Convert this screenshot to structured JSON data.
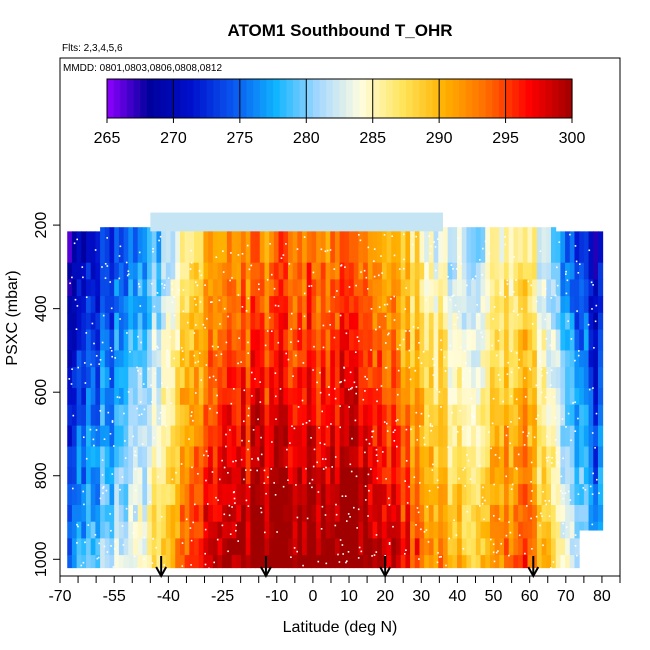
{
  "chart_data": {
    "type": "heatmap",
    "title": "ATOM1 Southbound T_OHR",
    "annotations": {
      "flights": "Flts: 2,3,4,5,6",
      "dates": "MMDD: 0801,0803,0806,0808,0812"
    },
    "xlabel": "Latitude (deg N)",
    "ylabel": "PSXC (mbar)",
    "xlim": [
      -70,
      85
    ],
    "ylim": [
      1040,
      -200
    ],
    "y_reversed": true,
    "x_ticks": [
      -70,
      -55,
      -40,
      -25,
      -10,
      0,
      10,
      20,
      30,
      40,
      50,
      60,
      70,
      80
    ],
    "x_tick_labels": [
      "-70",
      "-55",
      "-40",
      "-25",
      "-10",
      "0",
      "10",
      "20",
      "30",
      "40",
      "50",
      "60",
      "70",
      "80"
    ],
    "x_minor_ticks": [
      -65,
      -60,
      -50,
      -45,
      -35,
      -30,
      -20,
      -15,
      -5,
      5,
      15,
      25,
      35,
      45,
      55,
      65,
      75,
      85
    ],
    "y_ticks": [
      200,
      400,
      600,
      800,
      1000
    ],
    "y_tick_labels": [
      "200",
      "400",
      "600",
      "800",
      "1000"
    ],
    "colorbar": {
      "ticks": [
        265,
        270,
        275,
        280,
        285,
        290,
        295,
        300
      ],
      "tick_labels": [
        "265",
        "270",
        "275",
        "280",
        "285",
        "290",
        "295",
        "300"
      ],
      "range": [
        265,
        300
      ],
      "colors": [
        "#8f00ff",
        "#00009c",
        "#0010cc",
        "#0a58f0",
        "#10b4ff",
        "#a6d8ff",
        "#fffde0",
        "#ffe45a",
        "#ffb000",
        "#ff6a00",
        "#ff0000",
        "#a00000"
      ]
    },
    "grid": false,
    "pressure_levels": [
      200,
      290,
      330,
      370,
      410,
      450,
      500,
      540,
      590,
      630,
      680,
      730,
      780,
      820,
      870,
      910,
      950,
      990,
      1020
    ],
    "lat_knots": [
      -68,
      -62,
      -56,
      -50,
      -44,
      -38,
      -32,
      -26,
      -20,
      -14,
      -8,
      -2,
      4,
      10,
      16,
      22,
      28,
      34,
      40,
      46,
      52,
      58,
      64,
      70,
      78
    ],
    "temp_profile": [
      272,
      274,
      276,
      279,
      283,
      287,
      291,
      294.5,
      295.5,
      296,
      296.5,
      296.5,
      296.5,
      296,
      295,
      293,
      290,
      287,
      285,
      286,
      289,
      290,
      285,
      278,
      273
    ],
    "aloft_layer": {
      "lat_range": [
        -45,
        36
      ],
      "pressure_range": [
        170,
        215
      ],
      "temperature": 282
    },
    "descent_markers_lat": [
      -42,
      -13,
      20,
      61
    ]
  }
}
